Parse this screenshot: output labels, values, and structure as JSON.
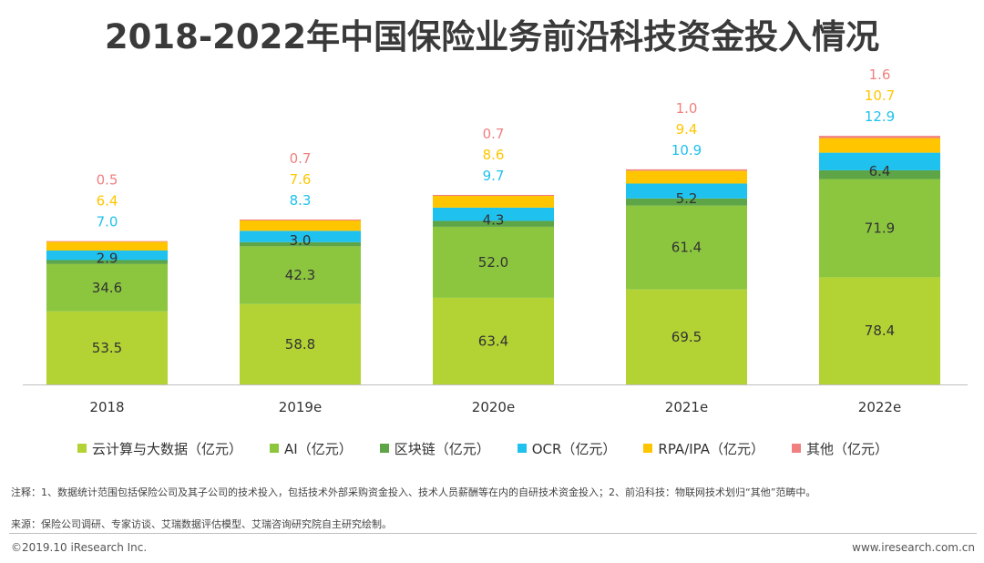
{
  "title": "2018-2022年中国保险业务前沿科技资金投入情况",
  "chart_data": {
    "type": "bar",
    "stacked": true,
    "categories": [
      "2018",
      "2019e",
      "2020e",
      "2021e",
      "2022e"
    ],
    "series": [
      {
        "name": "云计算与大数据（亿元）",
        "color": "#b3d334",
        "values": [
          53.5,
          58.8,
          63.4,
          69.5,
          78.4
        ]
      },
      {
        "name": "AI（亿元）",
        "color": "#8cc63f",
        "values": [
          34.6,
          42.3,
          52.0,
          61.4,
          71.9
        ]
      },
      {
        "name": "区块链（亿元）",
        "color": "#5da547",
        "values": [
          2.9,
          3.0,
          4.3,
          5.2,
          6.4
        ]
      },
      {
        "name": "OCR（亿元）",
        "color": "#1fc1ee",
        "values": [
          7.0,
          8.3,
          9.7,
          10.9,
          12.9
        ]
      },
      {
        "name": "RPA/IPA（亿元）",
        "color": "#ffc600",
        "values": [
          6.4,
          7.6,
          8.6,
          9.4,
          10.7
        ]
      },
      {
        "name": "其他（亿元）",
        "color": "#f08080",
        "values": [
          0.5,
          0.7,
          0.7,
          1.0,
          1.6
        ]
      }
    ],
    "labels": {
      "inside": [
        [
          "53.5",
          "58.8",
          "63.4",
          "69.5",
          "78.4"
        ],
        [
          "34.6",
          "42.3",
          "52.0",
          "61.4",
          "71.9"
        ],
        [
          "2.9",
          "3.0",
          "4.3",
          "5.2",
          "6.4"
        ]
      ],
      "above": [
        [
          "7.0",
          "8.3",
          "9.7",
          "10.9",
          "12.9"
        ],
        [
          "6.4",
          "7.6",
          "8.6",
          "9.4",
          "10.7"
        ],
        [
          "0.5",
          "0.7",
          "0.7",
          "1.0",
          "1.6"
        ]
      ]
    },
    "ylim": [
      0,
      190
    ],
    "legend_position": "bottom"
  },
  "note": "注释：1、数据统计范围包括保险公司及其子公司的技术投入，包括技术外部采购资金投入、技术人员薪酬等在内的自研技术资金投入；2、前沿科技：物联网技术划归“其他”范畴中。",
  "source": "来源：保险公司调研、专家访谈、艾瑞数据评估模型、艾瑞咨询研究院自主研究绘制。",
  "footer": {
    "copyright": "©2019.10 iResearch Inc.",
    "website": "www.iresearch.com.cn"
  }
}
